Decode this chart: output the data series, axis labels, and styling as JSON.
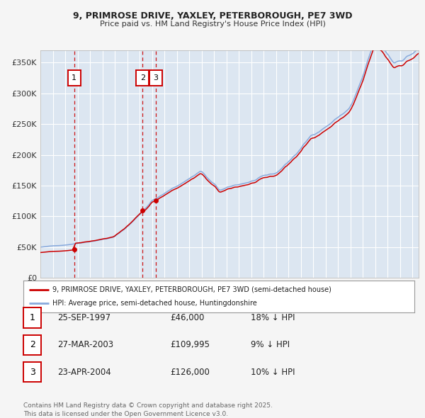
{
  "title_line1": "9, PRIMROSE DRIVE, YAXLEY, PETERBOROUGH, PE7 3WD",
  "title_line2": "Price paid vs. HM Land Registry's House Price Index (HPI)",
  "ylabel_ticks": [
    "£0",
    "£50K",
    "£100K",
    "£150K",
    "£200K",
    "£250K",
    "£300K",
    "£350K"
  ],
  "ytick_values": [
    0,
    50000,
    100000,
    150000,
    200000,
    250000,
    300000,
    350000
  ],
  "ylim": [
    0,
    370000
  ],
  "xlim_start": 1995.0,
  "xlim_end": 2025.5,
  "transactions": [
    {
      "label": "1",
      "date_str": "25-SEP-1997",
      "date_num": 1997.73,
      "price": 46000
    },
    {
      "label": "2",
      "date_str": "27-MAR-2003",
      "date_num": 2003.24,
      "price": 109995
    },
    {
      "label": "3",
      "date_str": "23-APR-2004",
      "date_num": 2004.32,
      "price": 126000
    }
  ],
  "property_color": "#cc0000",
  "hpi_color": "#88aadd",
  "fig_bg_color": "#f5f5f5",
  "plot_bg_color": "#dce6f1",
  "grid_color": "#ffffff",
  "dashed_line_color": "#cc0000",
  "legend_label_property": "9, PRIMROSE DRIVE, YAXLEY, PETERBOROUGH, PE7 3WD (semi-detached house)",
  "legend_label_hpi": "HPI: Average price, semi-detached house, Huntingdonshire",
  "footer_text": "Contains HM Land Registry data © Crown copyright and database right 2025.\nThis data is licensed under the Open Government Licence v3.0.",
  "table_rows": [
    [
      "1",
      "25-SEP-1997",
      "£46,000",
      "18% ↓ HPI"
    ],
    [
      "2",
      "27-MAR-2003",
      "£109,995",
      "9% ↓ HPI"
    ],
    [
      "3",
      "23-APR-2004",
      "£126,000",
      "10% ↓ HPI"
    ]
  ]
}
